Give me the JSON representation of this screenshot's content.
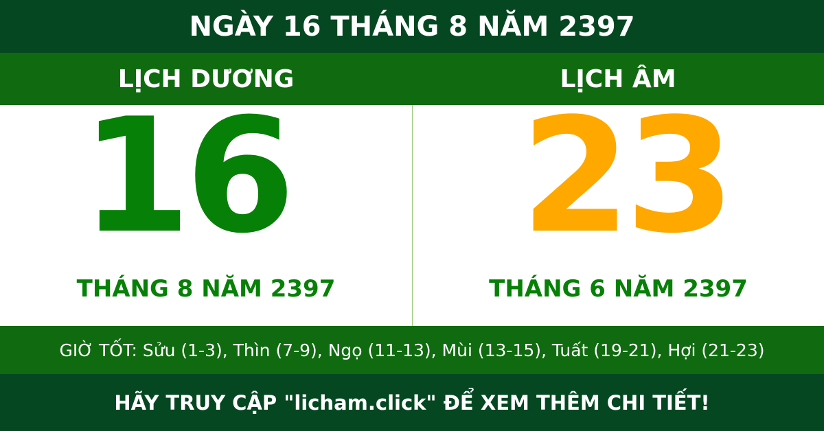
{
  "header": {
    "title": "NGÀY 16 THÁNG 8 NĂM 2397"
  },
  "solar": {
    "label": "LỊCH DƯƠNG",
    "day": "16",
    "month_year": "THÁNG 8 NĂM 2397"
  },
  "lunar": {
    "label": "LỊCH ÂM",
    "day": "23",
    "month_year": "THÁNG 6 NĂM 2397"
  },
  "good_hours": "GIỜ TỐT: Sửu (1-3), Thìn (7-9), Ngọ (11-13), Mùi (13-15), Tuất (19-21), Hợi (21-23)",
  "footer": {
    "cta": "HÃY TRUY CẬP \"licham.click\" ĐỂ XEM THÊM CHI TIẾT!"
  },
  "colors": {
    "dark_green": "#044721",
    "green": "#106b10",
    "solar_number": "#078007",
    "lunar_number": "#ffa800"
  }
}
